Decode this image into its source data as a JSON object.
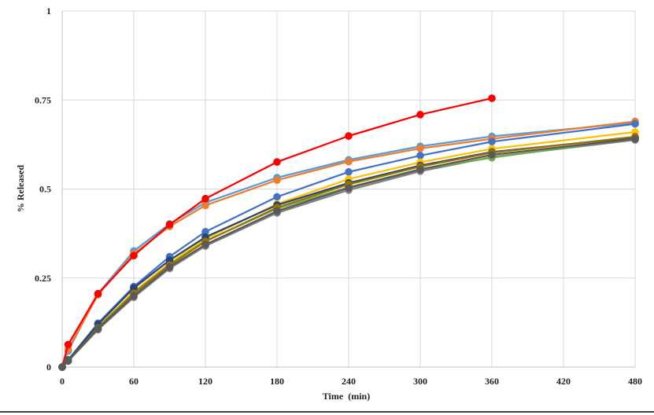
{
  "chart_data": {
    "type": "line",
    "xlabel": "Time  (min)",
    "ylabel": "% Released",
    "xlim": [
      0,
      480
    ],
    "ylim": [
      0,
      1
    ],
    "xticks": [
      0,
      60,
      120,
      180,
      240,
      300,
      360,
      420,
      480
    ],
    "yticks": [
      {
        "value": 0,
        "label": "0"
      },
      {
        "value": 0.25,
        "label": "0.25"
      },
      {
        "value": 0.5,
        "label": "0.5"
      },
      {
        "value": 0.75,
        "label": "0.75"
      },
      {
        "value": 1,
        "label": "1"
      }
    ],
    "grid": true,
    "legend": "none",
    "series": [
      {
        "color": "#7f7f7f",
        "x": [
          0,
          5,
          30,
          60,
          90,
          120,
          180,
          240,
          300,
          360,
          480
        ],
        "y": [
          0.0,
          0.017,
          0.105,
          0.196,
          0.277,
          0.34,
          0.433,
          0.497,
          0.55,
          0.59,
          0.638
        ]
      },
      {
        "color": "#5b9bd5",
        "x": [
          0,
          5,
          30,
          60,
          90,
          120,
          180,
          240,
          300,
          360,
          480
        ],
        "y": [
          0.0,
          0.045,
          0.206,
          0.326,
          0.402,
          0.462,
          0.532,
          0.582,
          0.62,
          0.648,
          0.686
        ]
      },
      {
        "color": "#ed7d31",
        "x": [
          0,
          5,
          30,
          60,
          90,
          120,
          180,
          240,
          300,
          360,
          480
        ],
        "y": [
          0.0,
          0.05,
          0.203,
          0.318,
          0.395,
          0.454,
          0.525,
          0.577,
          0.614,
          0.641,
          0.69
        ]
      },
      {
        "color": "#ff0000",
        "x": [
          0,
          5,
          30,
          60,
          90,
          120,
          180,
          240,
          300,
          360
        ],
        "y": [
          0.0,
          0.063,
          0.206,
          0.313,
          0.4,
          0.473,
          0.576,
          0.649,
          0.709,
          0.755
        ]
      },
      {
        "color": "#4472c4",
        "x": [
          0,
          5,
          30,
          60,
          90,
          120,
          180,
          240,
          300,
          360,
          480
        ],
        "y": [
          0.0,
          0.02,
          0.123,
          0.226,
          0.31,
          0.38,
          0.478,
          0.548,
          0.594,
          0.633,
          0.683
        ]
      },
      {
        "color": "#ffc000",
        "x": [
          0,
          5,
          30,
          60,
          90,
          120,
          180,
          240,
          300,
          360,
          480
        ],
        "y": [
          0.0,
          0.018,
          0.113,
          0.212,
          0.292,
          0.36,
          0.458,
          0.528,
          0.575,
          0.613,
          0.66
        ]
      },
      {
        "color": "#70ad47",
        "x": [
          0,
          5,
          30,
          60,
          90,
          120,
          180,
          240,
          300,
          360,
          480
        ],
        "y": [
          0.0,
          0.017,
          0.112,
          0.208,
          0.288,
          0.354,
          0.445,
          0.505,
          0.556,
          0.588,
          0.643
        ]
      },
      {
        "color": "#264478",
        "x": [
          0,
          5,
          30,
          60,
          90,
          120,
          180,
          240,
          300,
          360,
          480
        ],
        "y": [
          0.0,
          0.02,
          0.12,
          0.222,
          0.3,
          0.365,
          0.455,
          0.517,
          0.566,
          0.604,
          0.645
        ]
      },
      {
        "color": "#997300",
        "x": [
          0,
          5,
          30,
          60,
          90,
          120,
          180,
          240,
          300,
          360,
          480
        ],
        "y": [
          0.0,
          0.018,
          0.11,
          0.207,
          0.286,
          0.353,
          0.448,
          0.513,
          0.563,
          0.602,
          0.647
        ]
      },
      {
        "color": "#595959",
        "x": [
          0,
          5,
          30,
          60,
          90,
          120,
          180,
          240,
          300,
          360,
          480
        ],
        "y": [
          0.0,
          0.017,
          0.108,
          0.2,
          0.281,
          0.344,
          0.438,
          0.503,
          0.555,
          0.596,
          0.641
        ]
      }
    ]
  }
}
